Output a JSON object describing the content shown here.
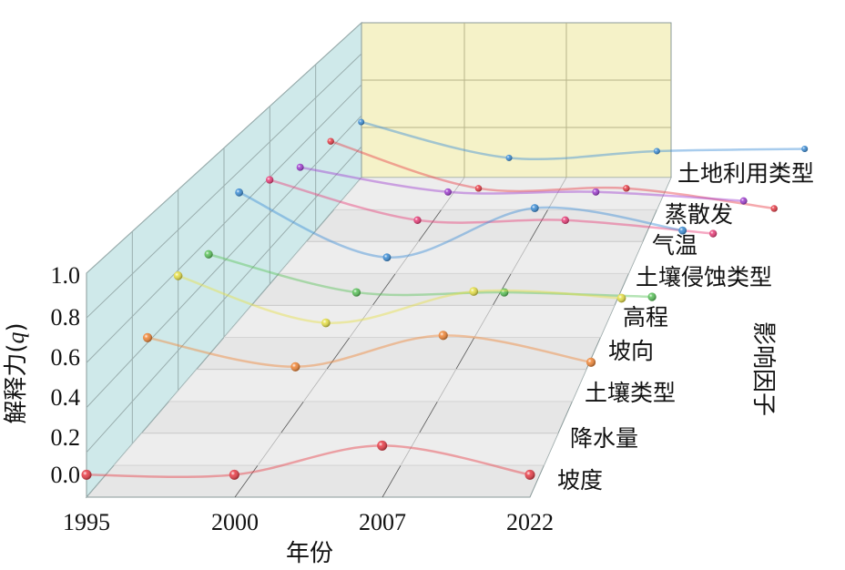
{
  "chart_data": {
    "type": "line",
    "title": "",
    "xlabel": "年份",
    "ylabel_prefix": "解释力(",
    "ylabel_var": "q",
    "ylabel_suffix": ")",
    "zlabel": "影响因子",
    "x": [
      "1995",
      "2000",
      "2007",
      "2022"
    ],
    "y_ticks": [
      "0.0",
      "0.2",
      "0.4",
      "0.6",
      "0.8",
      "1.0"
    ],
    "ylim": [
      0,
      1
    ],
    "grid": true,
    "series": [
      {
        "name": "坡度",
        "color": "#e8404a",
        "values": [
          0.1,
          0.1,
          0.23,
          0.1
        ]
      },
      {
        "name": "降水量",
        "color": "#e8404a",
        "values": [
          null,
          null,
          null,
          null
        ]
      },
      {
        "name": "土壤类型",
        "color": "#f0883a",
        "values": [
          0.56,
          0.43,
          0.57,
          0.45
        ]
      },
      {
        "name": "坡向",
        "color": "#e6e04a",
        "values": [
          0.76,
          0.55,
          0.69,
          0.66
        ]
      },
      {
        "name": "高程",
        "color": "#5cc35c",
        "values": [
          0.78,
          0.61,
          0.61,
          0.59
        ]
      },
      {
        "name": "土壤侵蚀类型",
        "color": "#3f8fd6",
        "values": [
          0.98,
          0.69,
          0.91,
          0.81
        ]
      },
      {
        "name": "气温",
        "color": "#e8407a",
        "values": [
          0.96,
          0.78,
          0.78,
          0.72
        ]
      },
      {
        "name": "蒸散发",
        "color": "#a040d0",
        "values": [
          0.94,
          0.83,
          0.83,
          0.79
        ]
      },
      {
        "name": "土地利用类型",
        "color": "#e8404a",
        "values": [
          0.98,
          0.77,
          0.77,
          0.68
        ]
      },
      {
        "name": "",
        "color": "#3f8fd6",
        "values": [
          0.99,
          0.83,
          0.86,
          0.87
        ]
      }
    ]
  }
}
